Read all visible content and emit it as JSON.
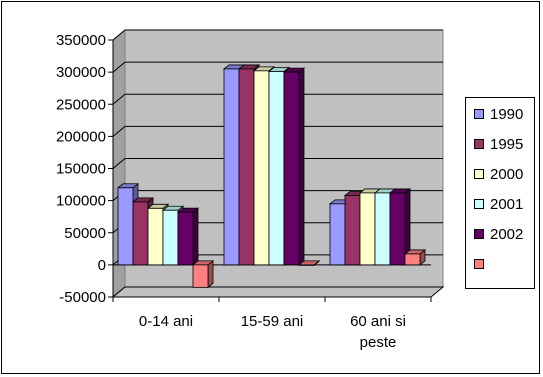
{
  "chart_data": {
    "type": "bar",
    "title": "",
    "xlabel": "",
    "ylabel": "",
    "categories": [
      "0-14 ani",
      "15-59 ani",
      "60 ani si peste"
    ],
    "category_lines": [
      [
        "0-14 ani"
      ],
      [
        "15-59 ani"
      ],
      [
        "60 ani si",
        "peste"
      ]
    ],
    "ylim": [
      -50000,
      350000
    ],
    "yticks": [
      -50000,
      0,
      50000,
      100000,
      150000,
      200000,
      250000,
      300000,
      350000
    ],
    "ytick_labels": [
      "-50000",
      "0",
      "50000",
      "100000",
      "150000",
      "200000",
      "250000",
      "300000",
      "350000"
    ],
    "grid": true,
    "legend_position": "right",
    "style": "3d-clustered-column",
    "series": [
      {
        "name": "1990",
        "color": "#9999ff",
        "values": [
          120000,
          305000,
          95000
        ]
      },
      {
        "name": "1995",
        "color": "#993366",
        "values": [
          98000,
          305000,
          108000
        ]
      },
      {
        "name": "2000",
        "color": "#ffffcc",
        "values": [
          88000,
          302000,
          112000
        ]
      },
      {
        "name": "2001",
        "color": "#ccffff",
        "values": [
          85000,
          301000,
          112000
        ]
      },
      {
        "name": "2002",
        "color": "#660066",
        "values": [
          82000,
          300000,
          112000
        ]
      },
      {
        "name": "",
        "color": "#ff8080",
        "values": [
          -35000,
          0,
          17000
        ]
      }
    ]
  }
}
